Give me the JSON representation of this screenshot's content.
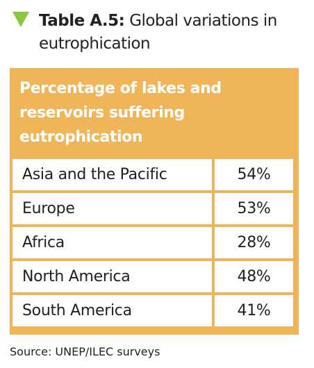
{
  "caption": {
    "label": "Table A.5:",
    "title": "Global variations in eutrophication"
  },
  "table": {
    "header": "Percentage of lakes and reservoirs suffering eutrophication",
    "rows": [
      {
        "region": "Asia and the Pacific",
        "value": "54%"
      },
      {
        "region": "Europe",
        "value": "53%"
      },
      {
        "region": "Africa",
        "value": "28%"
      },
      {
        "region": "North America",
        "value": "48%"
      },
      {
        "region": "South America",
        "value": "41%"
      }
    ]
  },
  "source": "Source: UNEP/ILEC surveys",
  "colors": {
    "accent_green": "#8cc63f",
    "header_orange": "#f0b558"
  },
  "icons": {
    "caption_marker": "triangle-down-icon"
  }
}
